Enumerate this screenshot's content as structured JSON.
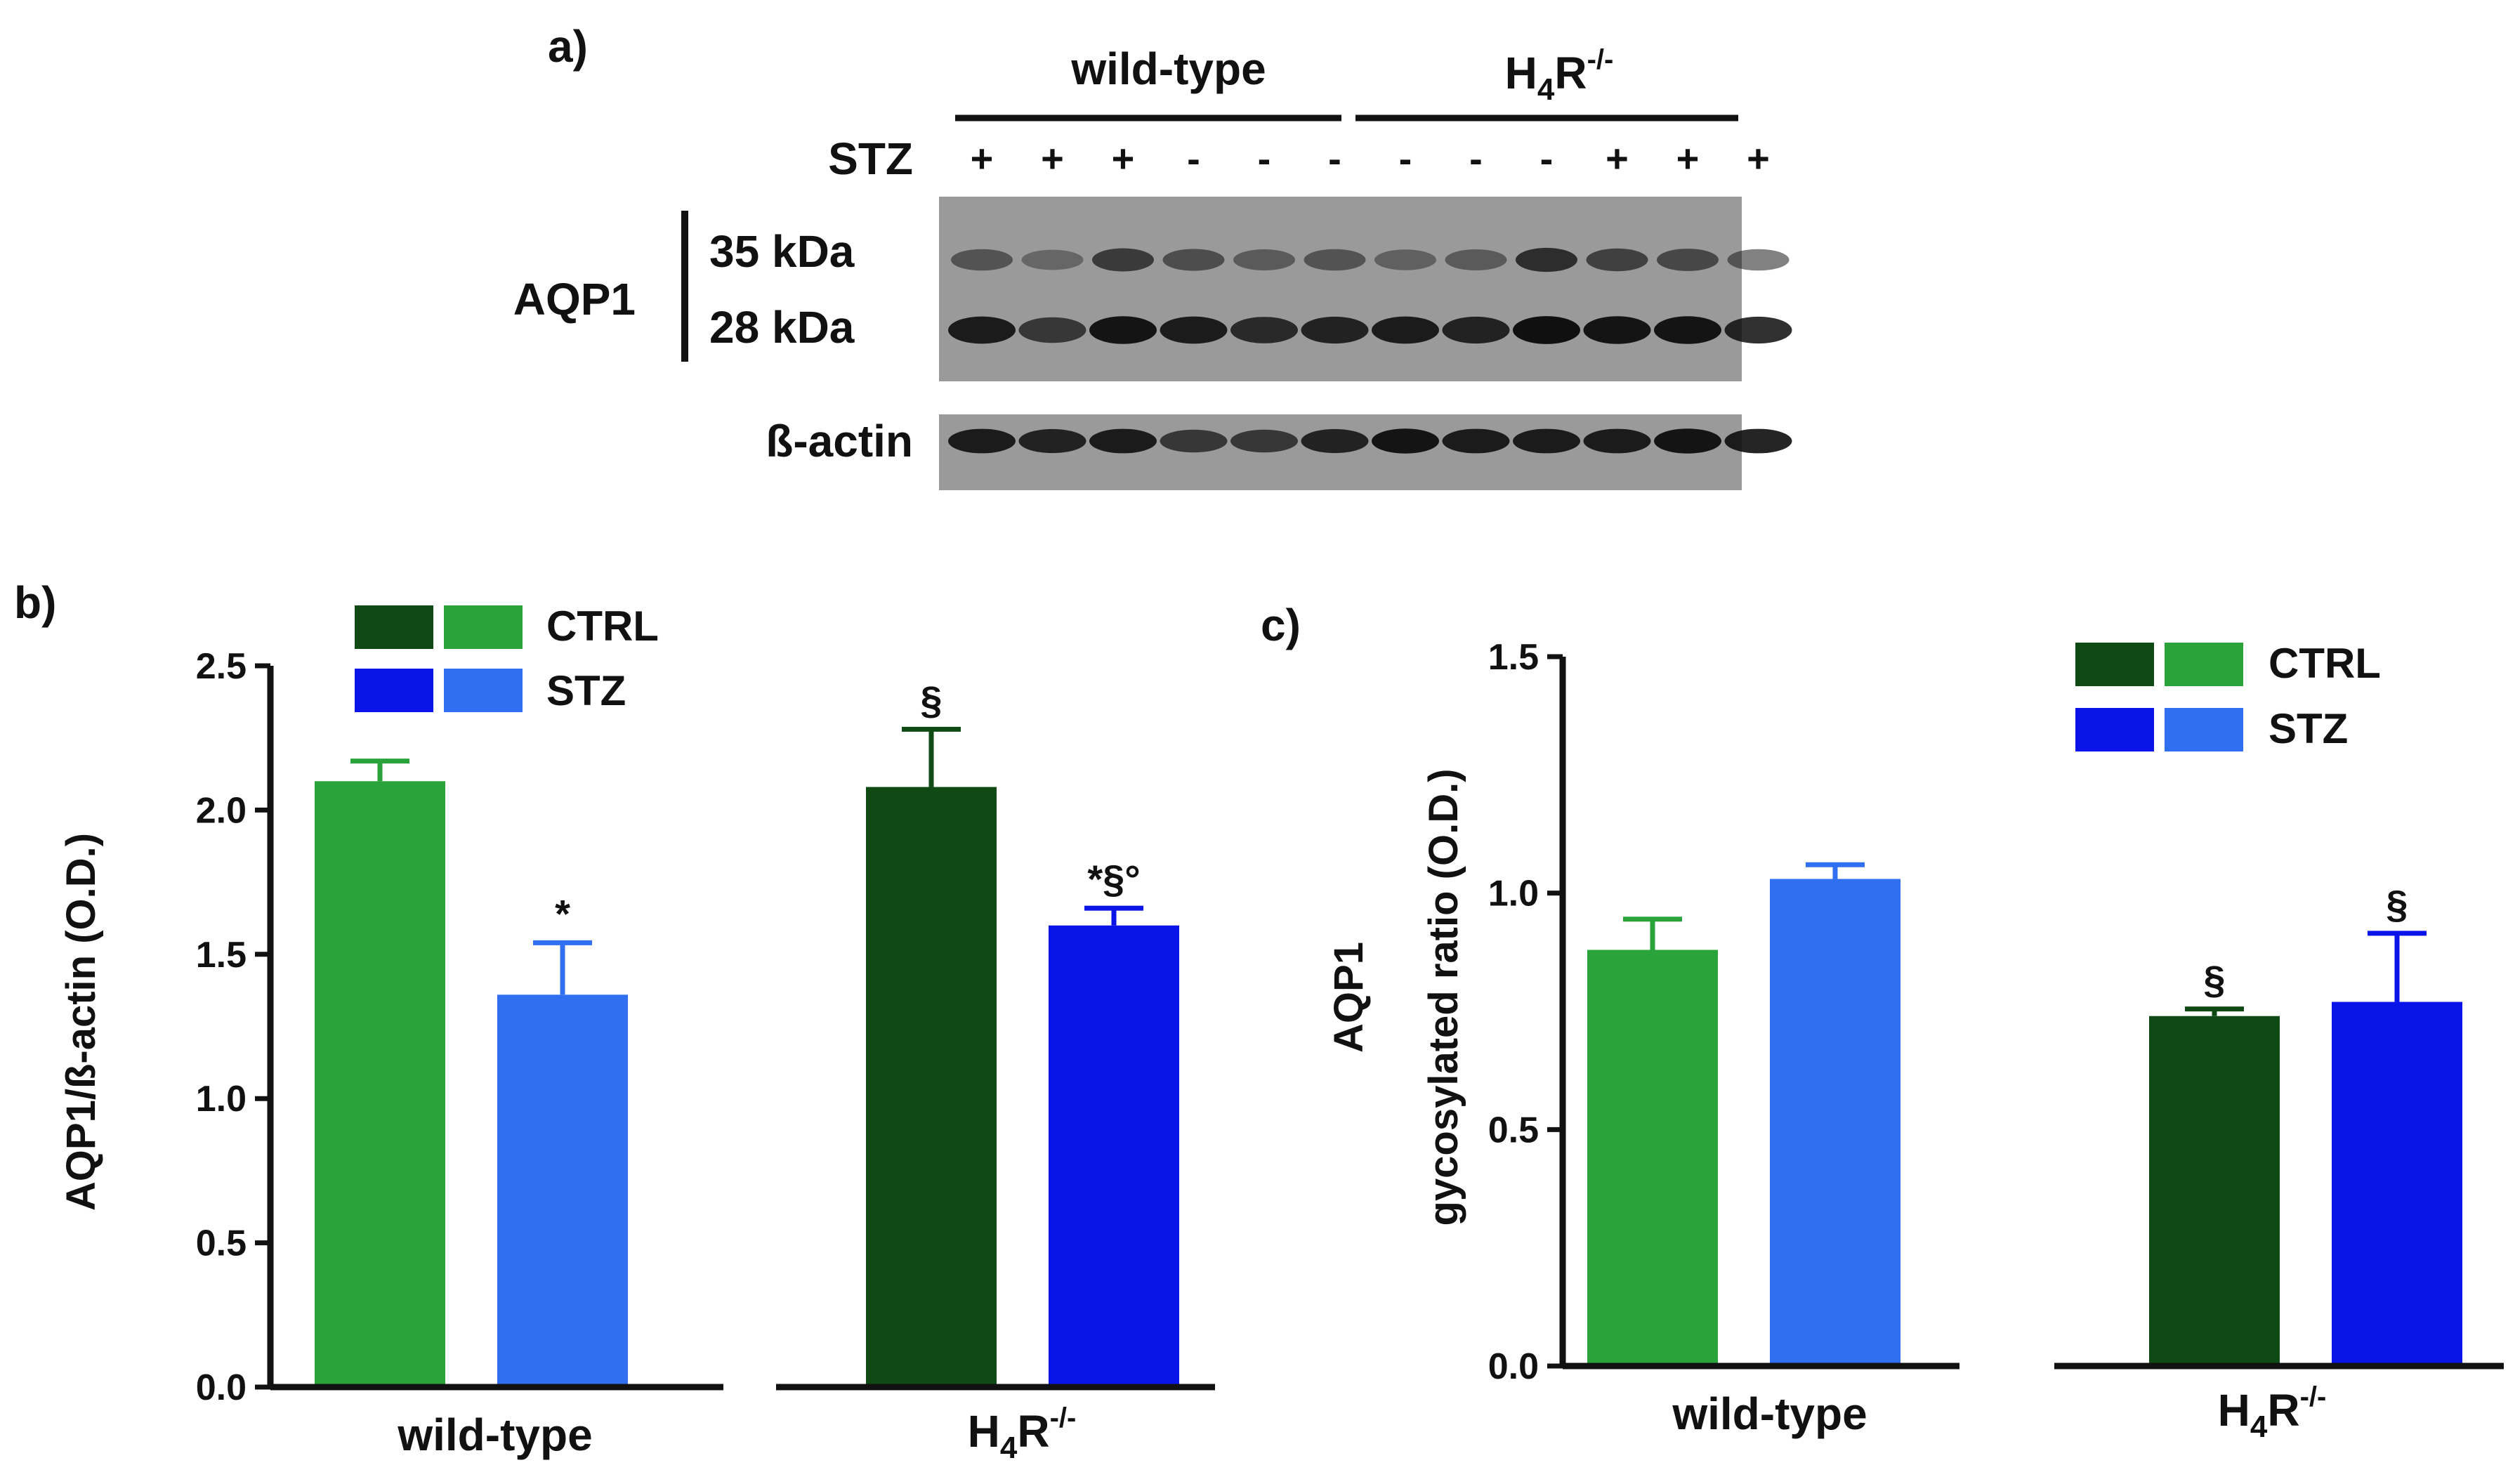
{
  "panels": {
    "a": {
      "label": "a)"
    },
    "b": {
      "label": "b)"
    },
    "c": {
      "label": "c)"
    }
  },
  "blot": {
    "group_labels": {
      "wildtype": "wild-type",
      "h4r_base": "H",
      "h4r_sub": "4",
      "h4r_base2": "R",
      "h4r_sup": "-/-"
    },
    "stz_label": "STZ",
    "stz_signs": [
      "+",
      "+",
      "+",
      "-",
      "-",
      "-",
      "-",
      "-",
      "-",
      "+",
      "+",
      "+"
    ],
    "protein_label": "AQP1",
    "kda_upper": "35 kDa",
    "kda_lower": "28 kDa",
    "loading_label": "ß-actin"
  },
  "legend": {
    "ctrl": "CTRL",
    "stz": "STZ"
  },
  "colors": {
    "ctrl_wt": "#2aa43a",
    "stz_wt": "#2f6ff0",
    "ctrl_h4r": "#0f4a14",
    "stz_h4r": "#0a14e8",
    "legend_ctrl_dark": "#0f4a14",
    "legend_ctrl_light": "#2aa43a",
    "legend_stz_dark": "#0a14e8",
    "legend_stz_light": "#2f6ff0"
  },
  "chart_data": [
    {
      "id": "b",
      "type": "bar",
      "ylabel": "AQP1/ß-actin (O.D.)",
      "ylim": [
        0,
        2.5
      ],
      "yticks": [
        "0.0",
        "0.5",
        "1.0",
        "1.5",
        "2.0",
        "2.5"
      ],
      "ytick_values": [
        0,
        0.5,
        1.0,
        1.5,
        2.0,
        2.5
      ],
      "groups": [
        "wild-type",
        "H4R-/-"
      ],
      "bars": [
        {
          "group": "wild-type",
          "series": "CTRL",
          "value": 2.1,
          "error": 0.07,
          "annotation": "",
          "color_key": "ctrl_wt"
        },
        {
          "group": "wild-type",
          "series": "STZ",
          "value": 1.36,
          "error": 0.18,
          "annotation": "*",
          "color_key": "stz_wt"
        },
        {
          "group": "H4R-/-",
          "series": "CTRL",
          "value": 2.08,
          "error": 0.2,
          "annotation": "§",
          "color_key": "ctrl_h4r"
        },
        {
          "group": "H4R-/-",
          "series": "STZ",
          "value": 1.6,
          "error": 0.06,
          "annotation": "*§°",
          "color_key": "stz_h4r"
        }
      ]
    },
    {
      "id": "c",
      "type": "bar",
      "ylabel_line1": "AQP1",
      "ylabel_line2": "gycosylated ratio (O.D.)",
      "ylim": [
        0,
        1.5
      ],
      "yticks": [
        "0.0",
        "0.5",
        "1.0",
        "1.5"
      ],
      "ytick_values": [
        0,
        0.5,
        1.0,
        1.5
      ],
      "groups": [
        "wild-type",
        "H4R-/-"
      ],
      "bars": [
        {
          "group": "wild-type",
          "series": "CTRL",
          "value": 0.88,
          "error": 0.065,
          "annotation": "",
          "color_key": "ctrl_wt"
        },
        {
          "group": "wild-type",
          "series": "STZ",
          "value": 1.03,
          "error": 0.03,
          "annotation": "",
          "color_key": "stz_wt"
        },
        {
          "group": "H4R-/-",
          "series": "CTRL",
          "value": 0.74,
          "error": 0.015,
          "annotation": "§",
          "color_key": "ctrl_h4r"
        },
        {
          "group": "H4R-/-",
          "series": "STZ",
          "value": 0.77,
          "error": 0.145,
          "annotation": "§",
          "color_key": "stz_h4r"
        }
      ]
    }
  ]
}
